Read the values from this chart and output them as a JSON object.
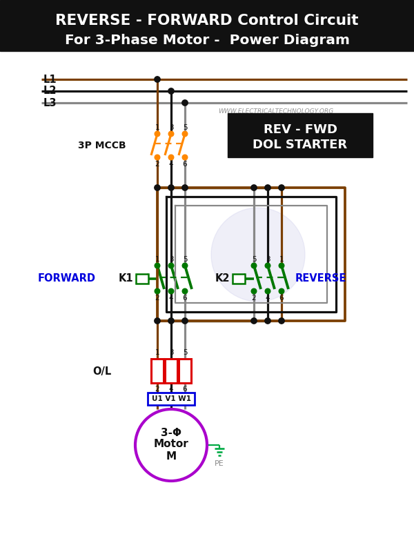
{
  "title_line1": "REVERSE - FORWARD Control Circuit",
  "title_line2": "For 3-Phase Motor -  Power Diagram",
  "title_bg": "#111111",
  "title_fg": "#ffffff",
  "bg_color": "#ffffff",
  "watermark": "WWW.ELECTRICALTECHNOLOGY.ORG",
  "box_label1": "REV - FWD",
  "box_label2": "DOL STARTER",
  "mccb_label": "3P MCCB",
  "ol_label": "O/L",
  "forward_label": "FORWARD",
  "k1_label": "K1",
  "k2_label": "K2",
  "reverse_label": "REVERSE",
  "motor_label1": "3-Φ",
  "motor_label2": "Motor",
  "motor_label3": "M",
  "terminal_label": "U1 V1 W1",
  "pe_label": "PE",
  "l1_label": "L1",
  "l2_label": "L2",
  "l3_label": "L3",
  "color_l1": "#7B3F00",
  "color_l2": "#111111",
  "color_l3": "#888888",
  "color_orange": "#FF8800",
  "color_green": "#007700",
  "color_black": "#111111",
  "color_brown": "#7B3F00",
  "color_blue": "#0000DD",
  "color_red": "#DD0000",
  "color_purple": "#AA00CC",
  "color_gray": "#888888",
  "color_white": "#ffffff",
  "color_pe_green": "#00AA44"
}
